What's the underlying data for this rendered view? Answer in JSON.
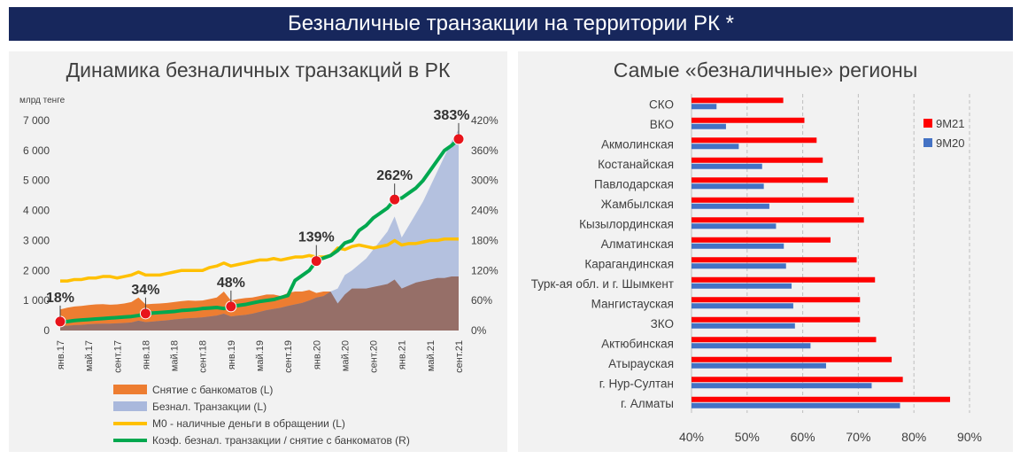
{
  "banner_title": "Безналичные транзакции на территории РК *",
  "left_panel": {
    "title": "Динамика безналичных транзакций в РК"
  },
  "right_panel": {
    "title": "Самые «безналичные» регионы"
  },
  "chart_data": [
    {
      "type": "area",
      "title": "Динамика безналичных транзакций в РК",
      "ylabel": "млрд тенге",
      "ylim": [
        0,
        7000
      ],
      "y_ticks": [
        "0",
        "1 000",
        "2 000",
        "3 000",
        "4 000",
        "5 000",
        "6 000",
        "7 000"
      ],
      "y2lim": [
        0,
        420
      ],
      "y2_ticks": [
        "0%",
        "60%",
        "120%",
        "180%",
        "240%",
        "300%",
        "360%",
        "420%"
      ],
      "x_ticks": [
        "янв.17",
        "май.17",
        "сент.17",
        "янв.18",
        "май.18",
        "сент.18",
        "янв.19",
        "май.19",
        "сент.19",
        "янв.20",
        "май.20",
        "сент.20",
        "янв.21",
        "май.21",
        "сент.21"
      ],
      "x": [
        "янв.17",
        "фев.17",
        "мар.17",
        "апр.17",
        "май.17",
        "июн.17",
        "июл.17",
        "авг.17",
        "сент.17",
        "окт.17",
        "нояб.17",
        "дек.17",
        "янв.18",
        "фев.18",
        "мар.18",
        "апр.18",
        "май.18",
        "июн.18",
        "июл.18",
        "авг.18",
        "сент.18",
        "окт.18",
        "нояб.18",
        "дек.18",
        "янв.19",
        "фев.19",
        "мар.19",
        "апр.19",
        "май.19",
        "июн.19",
        "июл.19",
        "авг.19",
        "сент.19",
        "окт.19",
        "нояб.19",
        "дек.19",
        "янв.20",
        "фев.20",
        "мар.20",
        "апр.20",
        "май.20",
        "июн.20",
        "июл.20",
        "авг.20",
        "сент.20",
        "окт.20",
        "нояб.20",
        "дек.20",
        "янв.21",
        "фев.21",
        "мар.21",
        "апр.21",
        "май.21",
        "июн.21",
        "июл.21",
        "авг.21",
        "сент.21"
      ],
      "series": [
        {
          "name": "Снятие с банкоматов (L)",
          "type": "area",
          "color": "#ed7d31",
          "values": [
            700,
            760,
            800,
            820,
            850,
            870,
            880,
            860,
            870,
            900,
            950,
            1100,
            870,
            890,
            900,
            920,
            950,
            980,
            1000,
            990,
            1000,
            1050,
            1100,
            1300,
            1000,
            1050,
            1080,
            1100,
            1150,
            1200,
            1200,
            1150,
            1250,
            1300,
            1300,
            1350,
            1250,
            1300,
            1300,
            900,
            1200,
            1400,
            1400,
            1400,
            1450,
            1500,
            1550,
            1700,
            1400,
            1500,
            1600,
            1650,
            1700,
            1750,
            1750,
            1800,
            1800
          ]
        },
        {
          "name": "Безнал. Транзакции (L)",
          "type": "area",
          "color": "#a9b8dc",
          "values": [
            150,
            160,
            180,
            190,
            210,
            220,
            230,
            230,
            240,
            250,
            270,
            330,
            280,
            300,
            320,
            340,
            370,
            390,
            410,
            420,
            440,
            470,
            500,
            560,
            470,
            500,
            520,
            560,
            620,
            680,
            720,
            760,
            820,
            870,
            920,
            1000,
            1100,
            1150,
            1300,
            1400,
            1850,
            2000,
            2200,
            2400,
            2700,
            3000,
            3300,
            3800,
            3100,
            3500,
            3900,
            4300,
            4800,
            5300,
            5800,
            6300,
            6700
          ]
        },
        {
          "name": "М0 - наличные деньги в обращении (L)",
          "type": "line",
          "color": "#ffc000",
          "values": [
            1650,
            1650,
            1700,
            1700,
            1750,
            1750,
            1800,
            1800,
            1750,
            1800,
            1850,
            1950,
            1850,
            1850,
            1850,
            1900,
            1950,
            2000,
            2000,
            2000,
            2000,
            2100,
            2150,
            2250,
            2150,
            2200,
            2250,
            2300,
            2350,
            2350,
            2400,
            2350,
            2400,
            2450,
            2450,
            2500,
            2450,
            2450,
            2500,
            2750,
            2700,
            2800,
            2850,
            2800,
            2750,
            2800,
            2850,
            3000,
            2850,
            2900,
            2900,
            2950,
            3000,
            3000,
            3050,
            3050,
            3050
          ]
        },
        {
          "name": "Коэф. безнал. транзакции / снятие с банкоматов (R)",
          "type": "line",
          "color": "#00a84f",
          "axis": "right",
          "values": [
            18,
            18,
            20,
            21,
            22,
            23,
            24,
            25,
            26,
            27,
            28,
            30,
            34,
            35,
            36,
            37,
            38,
            40,
            41,
            42,
            44,
            45,
            46,
            44,
            48,
            50,
            52,
            55,
            58,
            60,
            62,
            66,
            70,
            100,
            110,
            120,
            139,
            145,
            150,
            160,
            175,
            180,
            200,
            210,
            225,
            235,
            245,
            262,
            265,
            275,
            285,
            300,
            320,
            340,
            360,
            370,
            383
          ]
        }
      ],
      "annotations": [
        {
          "label": "18%",
          "x": "янв.17",
          "y": 18
        },
        {
          "label": "34%",
          "x": "янв.18",
          "y": 34
        },
        {
          "label": "48%",
          "x": "янв.19",
          "y": 48
        },
        {
          "label": "139%",
          "x": "янв.20",
          "y": 139
        },
        {
          "label": "262%",
          "x": "дек.20",
          "y": 262
        },
        {
          "label": "383%",
          "x": "сент.21",
          "y": 383
        }
      ],
      "grid": false,
      "legend": "bottom"
    },
    {
      "type": "bar",
      "orientation": "horizontal",
      "title": "Самые «безналичные» регионы",
      "categories": [
        "СКО",
        "ВКО",
        "Акмолинская",
        "Костанайская",
        "Павлодарская",
        "Жамбылская",
        "Кызылординская",
        "Алматинская",
        "Карагандинская",
        "Турк-ая обл. и г. Шымкент",
        "Мангистауская",
        "ЗКО",
        "Актюбинская",
        "Атырауская",
        "г. Нур-Султан",
        "г. Алматы"
      ],
      "series": [
        {
          "name": "9М21",
          "color": "#ff0000",
          "values": [
            56.5,
            60.3,
            62.5,
            63.6,
            64.5,
            69.2,
            71.0,
            65.0,
            69.7,
            73.0,
            70.3,
            70.3,
            73.2,
            76.0,
            78.0,
            86.5
          ]
        },
        {
          "name": "9М20",
          "color": "#4472c4",
          "values": [
            44.5,
            46.2,
            48.5,
            52.7,
            53.0,
            54.0,
            55.2,
            56.6,
            57.0,
            58.0,
            58.3,
            58.6,
            61.4,
            64.2,
            72.4,
            77.5
          ]
        }
      ],
      "xlim": [
        40,
        90
      ],
      "x_ticks": [
        "40%",
        "50%",
        "60%",
        "70%",
        "80%",
        "90%"
      ],
      "grid": true,
      "legend": "top-right"
    }
  ]
}
